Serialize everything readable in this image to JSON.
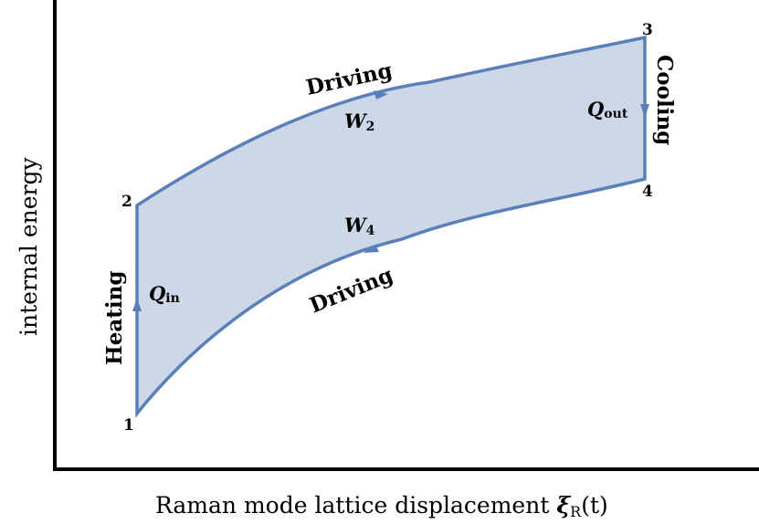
{
  "axes": {
    "xlabel": "Raman mode lattice displacement",
    "xlabel_symbol": "ξ",
    "xlabel_subscript": "R",
    "xlabel_arg": "(t)",
    "ylabel": "internal energy"
  },
  "states": {
    "s1": "1",
    "s2": "2",
    "s3": "3",
    "s4": "4"
  },
  "processes": {
    "heating": "Heating",
    "cooling": "Cooling",
    "driving_top": "Driving",
    "driving_bottom": "Driving"
  },
  "quantities": {
    "q_in": "Q",
    "q_in_sub": "in",
    "q_out": "Q",
    "q_out_sub": "out",
    "w2": "W",
    "w2_sub": "2",
    "w4": "W",
    "w4_sub": "4"
  },
  "colors": {
    "cycle_stroke": "#5b7fb9",
    "cycle_fill": "#ccd8e8",
    "axis": "#000000"
  }
}
